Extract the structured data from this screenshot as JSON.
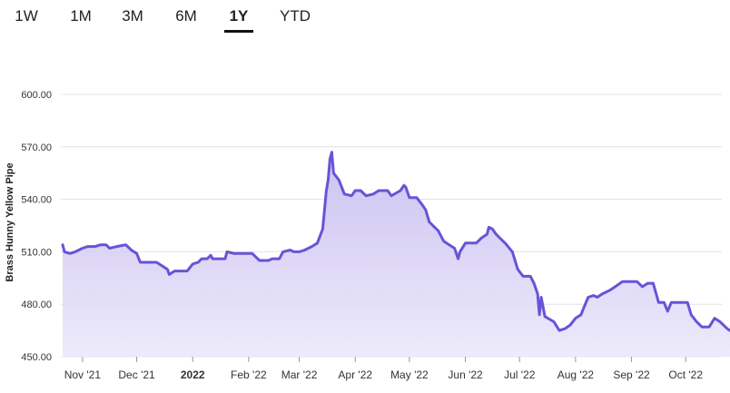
{
  "range_tabs": [
    {
      "label": "1W",
      "active": false
    },
    {
      "label": "1M",
      "active": false
    },
    {
      "label": "3M",
      "active": false
    },
    {
      "label": "6M",
      "active": false
    },
    {
      "label": "1Y",
      "active": true
    },
    {
      "label": "YTD",
      "active": false
    }
  ],
  "colors": {
    "line": "#6a52d8",
    "fill_top": "#c6bcef",
    "fill_bottom": "#ece8fb",
    "grid": "#e3e3e3"
  },
  "chart_data": {
    "type": "area",
    "title": "",
    "xlabel": "",
    "ylabel": "Brass Hunny Yellow Pipe",
    "ylim": [
      450,
      600
    ],
    "xlim": [
      "2021-10-21",
      "2022-10-21"
    ],
    "yticks": [
      "450.00",
      "480.00",
      "510.00",
      "540.00",
      "570.00",
      "600.00"
    ],
    "xticks": [
      {
        "label": "Nov '21",
        "date": "2021-11-01",
        "bold": false
      },
      {
        "label": "Dec '21",
        "date": "2021-12-01",
        "bold": false
      },
      {
        "label": "2022",
        "date": "2022-01-01",
        "bold": true
      },
      {
        "label": "Feb '22",
        "date": "2022-02-01",
        "bold": false
      },
      {
        "label": "Mar '22",
        "date": "2022-03-01",
        "bold": false
      },
      {
        "label": "Apr '22",
        "date": "2022-04-01",
        "bold": false
      },
      {
        "label": "May '22",
        "date": "2022-05-01",
        "bold": false
      },
      {
        "label": "Jun '22",
        "date": "2022-06-01",
        "bold": false
      },
      {
        "label": "Jul '22",
        "date": "2022-07-01",
        "bold": false
      },
      {
        "label": "Aug '22",
        "date": "2022-08-01",
        "bold": false
      },
      {
        "label": "Sep '22",
        "date": "2022-09-01",
        "bold": false
      },
      {
        "label": "Oct '22",
        "date": "2022-10-01",
        "bold": false
      }
    ],
    "grid": true,
    "series": [
      {
        "points": [
          [
            "2021-10-21",
            514
          ],
          [
            "2021-10-22",
            510
          ],
          [
            "2021-10-25",
            509
          ],
          [
            "2021-10-28",
            510
          ],
          [
            "2021-11-01",
            512
          ],
          [
            "2021-11-04",
            513
          ],
          [
            "2021-11-08",
            513
          ],
          [
            "2021-11-11",
            514
          ],
          [
            "2021-11-14",
            514
          ],
          [
            "2021-11-16",
            512
          ],
          [
            "2021-11-20",
            513
          ],
          [
            "2021-11-25",
            514
          ],
          [
            "2021-11-28",
            511
          ],
          [
            "2021-12-01",
            509
          ],
          [
            "2021-12-03",
            504
          ],
          [
            "2021-12-08",
            504
          ],
          [
            "2021-12-12",
            504
          ],
          [
            "2021-12-15",
            502
          ],
          [
            "2021-12-18",
            500
          ],
          [
            "2021-12-19",
            497
          ],
          [
            "2021-12-22",
            499
          ],
          [
            "2021-12-27",
            499
          ],
          [
            "2021-12-29",
            499
          ],
          [
            "2022-01-01",
            503
          ],
          [
            "2022-01-04",
            504
          ],
          [
            "2022-01-06",
            506
          ],
          [
            "2022-01-09",
            506
          ],
          [
            "2022-01-11",
            508
          ],
          [
            "2022-01-12",
            506
          ],
          [
            "2022-01-15",
            506
          ],
          [
            "2022-01-19",
            506
          ],
          [
            "2022-01-20",
            510
          ],
          [
            "2022-01-24",
            509
          ],
          [
            "2022-01-29",
            509
          ],
          [
            "2022-02-03",
            509
          ],
          [
            "2022-02-05",
            507
          ],
          [
            "2022-02-07",
            505
          ],
          [
            "2022-02-12",
            505
          ],
          [
            "2022-02-14",
            506
          ],
          [
            "2022-02-18",
            506
          ],
          [
            "2022-02-20",
            510
          ],
          [
            "2022-02-24",
            511
          ],
          [
            "2022-02-26",
            510
          ],
          [
            "2022-03-01",
            510
          ],
          [
            "2022-03-04",
            511
          ],
          [
            "2022-03-08",
            513
          ],
          [
            "2022-03-11",
            515
          ],
          [
            "2022-03-14",
            523
          ],
          [
            "2022-03-16",
            545
          ],
          [
            "2022-03-17",
            551
          ],
          [
            "2022-03-18",
            563
          ],
          [
            "2022-03-19",
            567
          ],
          [
            "2022-03-20",
            555
          ],
          [
            "2022-03-23",
            551
          ],
          [
            "2022-03-26",
            543
          ],
          [
            "2022-03-30",
            542
          ],
          [
            "2022-04-01",
            545
          ],
          [
            "2022-04-04",
            545
          ],
          [
            "2022-04-07",
            542
          ],
          [
            "2022-04-11",
            543
          ],
          [
            "2022-04-14",
            545
          ],
          [
            "2022-04-19",
            545
          ],
          [
            "2022-04-21",
            542
          ],
          [
            "2022-04-26",
            545
          ],
          [
            "2022-04-28",
            548
          ],
          [
            "2022-04-29",
            547
          ],
          [
            "2022-05-01",
            541
          ],
          [
            "2022-05-05",
            541
          ],
          [
            "2022-05-08",
            537
          ],
          [
            "2022-05-10",
            534
          ],
          [
            "2022-05-12",
            527
          ],
          [
            "2022-05-17",
            522
          ],
          [
            "2022-05-20",
            516
          ],
          [
            "2022-05-23",
            514
          ],
          [
            "2022-05-26",
            512
          ],
          [
            "2022-05-28",
            506
          ],
          [
            "2022-05-29",
            510
          ],
          [
            "2022-06-01",
            515
          ],
          [
            "2022-06-04",
            515
          ],
          [
            "2022-06-07",
            515
          ],
          [
            "2022-06-10",
            518
          ],
          [
            "2022-06-13",
            520
          ],
          [
            "2022-06-14",
            524
          ],
          [
            "2022-06-16",
            523
          ],
          [
            "2022-06-18",
            520
          ],
          [
            "2022-06-20",
            518
          ],
          [
            "2022-06-23",
            515
          ],
          [
            "2022-06-27",
            510
          ],
          [
            "2022-06-30",
            500
          ],
          [
            "2022-07-03",
            496
          ],
          [
            "2022-07-07",
            496
          ],
          [
            "2022-07-09",
            492
          ],
          [
            "2022-07-11",
            486
          ],
          [
            "2022-07-12",
            474
          ],
          [
            "2022-07-13",
            484
          ],
          [
            "2022-07-15",
            473
          ],
          [
            "2022-07-20",
            470
          ],
          [
            "2022-07-23",
            465
          ],
          [
            "2022-07-26",
            466
          ],
          [
            "2022-07-29",
            468
          ],
          [
            "2022-08-01",
            472
          ],
          [
            "2022-08-04",
            474
          ],
          [
            "2022-08-06",
            479
          ],
          [
            "2022-08-08",
            484
          ],
          [
            "2022-08-11",
            485
          ],
          [
            "2022-08-13",
            484
          ],
          [
            "2022-08-16",
            486
          ],
          [
            "2022-08-20",
            488
          ],
          [
            "2022-08-23",
            490
          ],
          [
            "2022-08-27",
            493
          ],
          [
            "2022-08-31",
            493
          ],
          [
            "2022-09-04",
            493
          ],
          [
            "2022-09-07",
            490
          ],
          [
            "2022-09-10",
            492
          ],
          [
            "2022-09-13",
            492
          ],
          [
            "2022-09-16",
            481
          ],
          [
            "2022-09-19",
            481
          ],
          [
            "2022-09-21",
            476
          ],
          [
            "2022-09-23",
            481
          ],
          [
            "2022-09-28",
            481
          ],
          [
            "2022-10-02",
            481
          ],
          [
            "2022-10-04",
            474
          ],
          [
            "2022-10-07",
            470
          ],
          [
            "2022-10-10",
            467
          ],
          [
            "2022-10-14",
            467
          ],
          [
            "2022-10-17",
            472
          ],
          [
            "2022-10-20",
            470
          ],
          [
            "2022-10-24",
            466
          ],
          [
            "2022-10-27",
            464
          ],
          [
            "2022-10-29",
            461
          ],
          [
            "2022-11-01",
            461
          ]
        ]
      }
    ]
  }
}
